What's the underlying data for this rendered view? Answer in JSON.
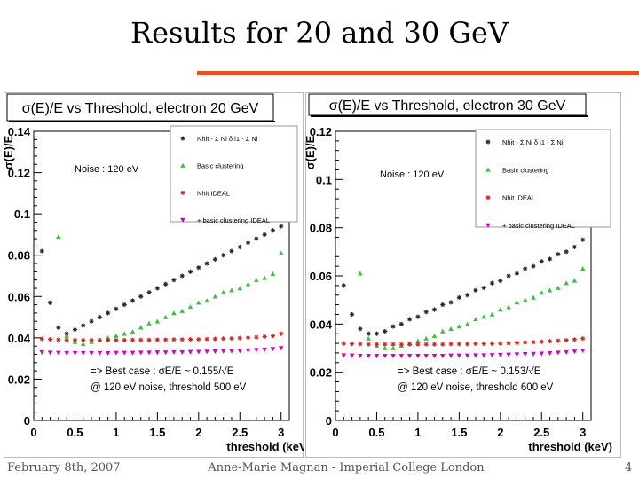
{
  "slide": {
    "title": "Results for 20 and 30 GeV",
    "footer_left": "February 8th, 2007",
    "footer_center": "Anne-Marie Magnan - Imperial College London",
    "page_number": "4"
  },
  "colors": {
    "accent_rule": "#e8501e",
    "series": [
      "#222222",
      "#3fbf3f",
      "#d62020",
      "#d000d0"
    ]
  },
  "chart_data": [
    {
      "type": "scatter",
      "title": "σ(E)/E vs Threshold, electron 20 GeV",
      "ylabel": "σ(E)/E",
      "xlabel": "threshold (keV)",
      "xlim": [
        0,
        3.1
      ],
      "ylim": [
        0,
        0.14
      ],
      "xticks": [
        0,
        0.5,
        1,
        1.5,
        2,
        2.5,
        3
      ],
      "xtick_labels": [
        "0",
        "0.5",
        "1",
        "1.5",
        "2",
        "2.5",
        "3"
      ],
      "yticks": [
        0,
        0.02,
        0.04,
        0.06,
        0.08,
        0.1,
        0.12,
        0.14
      ],
      "ytick_labels": [
        "0",
        "0.02",
        "0.04",
        "0.06",
        "0.08",
        "0.1",
        "0.12",
        "0.14"
      ],
      "grid": false,
      "legend_position": "top-right",
      "noise_label": "Noise : 120 eV",
      "annotation_line1": "=> Best case : σE/E ~ 0.155/√E",
      "annotation_line2": "@ 120 eV noise, threshold 500 eV",
      "legend": [
        {
          "label": "Nhit - Σ Ni δ i1 - Σ Ni",
          "marker": "star",
          "color": "#222222"
        },
        {
          "label": "Basic clustering",
          "marker": "triangle",
          "color": "#3fbf3f"
        },
        {
          "label": "Nhit IDEAL",
          "marker": "star",
          "color": "#d62020"
        },
        {
          "label": "+ basic clustering IDEAL",
          "marker": "triangle-down",
          "color": "#d000d0"
        }
      ],
      "series": [
        {
          "marker": "star",
          "color": "#222222",
          "x": [
            0.1,
            0.2,
            0.3,
            0.4,
            0.5,
            0.6,
            0.7,
            0.8,
            0.9,
            1.0,
            1.1,
            1.2,
            1.3,
            1.4,
            1.5,
            1.6,
            1.7,
            1.8,
            1.9,
            2.0,
            2.1,
            2.2,
            2.3,
            2.4,
            2.5,
            2.6,
            2.7,
            2.8,
            2.9,
            3.0
          ],
          "y": [
            0.082,
            0.057,
            0.045,
            0.042,
            0.044,
            0.046,
            0.048,
            0.05,
            0.052,
            0.054,
            0.056,
            0.058,
            0.06,
            0.062,
            0.064,
            0.066,
            0.068,
            0.07,
            0.072,
            0.074,
            0.076,
            0.078,
            0.08,
            0.082,
            0.084,
            0.086,
            0.088,
            0.09,
            0.092,
            0.094
          ]
        },
        {
          "marker": "triangle",
          "color": "#3fbf3f",
          "x": [
            0.3,
            0.4,
            0.5,
            0.6,
            0.7,
            0.8,
            0.9,
            1.0,
            1.1,
            1.2,
            1.3,
            1.4,
            1.5,
            1.6,
            1.7,
            1.8,
            1.9,
            2.0,
            2.1,
            2.2,
            2.3,
            2.4,
            2.5,
            2.6,
            2.7,
            2.8,
            2.9,
            3.0
          ],
          "y": [
            0.089,
            0.041,
            0.038,
            0.037,
            0.038,
            0.039,
            0.04,
            0.041,
            0.042,
            0.043,
            0.045,
            0.047,
            0.048,
            0.05,
            0.052,
            0.053,
            0.055,
            0.057,
            0.058,
            0.06,
            0.062,
            0.063,
            0.064,
            0.066,
            0.068,
            0.069,
            0.071,
            0.081
          ]
        },
        {
          "marker": "star",
          "color": "#d62020",
          "x": [
            0.1,
            0.2,
            0.3,
            0.4,
            0.5,
            0.6,
            0.7,
            0.8,
            0.9,
            1.0,
            1.1,
            1.2,
            1.3,
            1.4,
            1.5,
            1.6,
            1.7,
            1.8,
            1.9,
            2.0,
            2.1,
            2.2,
            2.3,
            2.4,
            2.5,
            2.6,
            2.7,
            2.8,
            2.9,
            3.0
          ],
          "y": [
            0.0395,
            0.0393,
            0.0391,
            0.039,
            0.039,
            0.0389,
            0.0389,
            0.0389,
            0.0389,
            0.0389,
            0.0389,
            0.039,
            0.039,
            0.039,
            0.0391,
            0.0391,
            0.0392,
            0.0392,
            0.0393,
            0.0393,
            0.0394,
            0.0395,
            0.0396,
            0.0397,
            0.0399,
            0.0401,
            0.0403,
            0.0406,
            0.041,
            0.042
          ]
        },
        {
          "marker": "triangle-down",
          "color": "#d000d0",
          "x": [
            0.1,
            0.2,
            0.3,
            0.4,
            0.5,
            0.6,
            0.7,
            0.8,
            0.9,
            1.0,
            1.1,
            1.2,
            1.3,
            1.4,
            1.5,
            1.6,
            1.7,
            1.8,
            1.9,
            2.0,
            2.1,
            2.2,
            2.3,
            2.4,
            2.5,
            2.6,
            2.7,
            2.8,
            2.9,
            3.0
          ],
          "y": [
            0.033,
            0.0328,
            0.0327,
            0.0326,
            0.0326,
            0.0326,
            0.0326,
            0.0326,
            0.0326,
            0.0327,
            0.0327,
            0.0327,
            0.0328,
            0.0328,
            0.0329,
            0.0329,
            0.033,
            0.033,
            0.0331,
            0.0332,
            0.0333,
            0.0334,
            0.0335,
            0.0336,
            0.0337,
            0.0339,
            0.0341,
            0.0343,
            0.0346,
            0.035
          ]
        }
      ]
    },
    {
      "type": "scatter",
      "title": "σ(E)/E vs Threshold, electron 30 GeV",
      "ylabel": "σ(E)/E",
      "xlabel": "threshold (keV)",
      "xlim": [
        0,
        3.1
      ],
      "ylim": [
        0,
        0.12
      ],
      "xticks": [
        0,
        0.5,
        1,
        1.5,
        2,
        2.5,
        3
      ],
      "xtick_labels": [
        "0",
        "0.5",
        "1",
        "1.5",
        "2",
        "2.5",
        "3"
      ],
      "yticks": [
        0,
        0.02,
        0.04,
        0.06,
        0.08,
        0.1,
        0.12
      ],
      "ytick_labels": [
        "0",
        "0.02",
        "0.04",
        "0.06",
        "0.08",
        "0.1",
        "0.12"
      ],
      "grid": false,
      "legend_position": "top-right",
      "noise_label": "Noise : 120 eV",
      "annotation_line1": "=> Best case : σE/E ~ 0.153/√E",
      "annotation_line2": "@ 120 eV noise, threshold 600 eV",
      "legend": [
        {
          "label": "Nhit - Σ Ni δ i1 - Σ Ni",
          "marker": "star",
          "color": "#222222"
        },
        {
          "label": "Basic clustering",
          "marker": "triangle",
          "color": "#3fbf3f"
        },
        {
          "label": "Nhit IDEAL",
          "marker": "star",
          "color": "#d62020"
        },
        {
          "label": "+ basic clustering IDEAL",
          "marker": "triangle-down",
          "color": "#d000d0"
        }
      ],
      "series": [
        {
          "marker": "star",
          "color": "#222222",
          "x": [
            0.1,
            0.2,
            0.3,
            0.4,
            0.5,
            0.6,
            0.7,
            0.8,
            0.9,
            1.0,
            1.1,
            1.2,
            1.3,
            1.4,
            1.5,
            1.6,
            1.7,
            1.8,
            1.9,
            2.0,
            2.1,
            2.2,
            2.3,
            2.4,
            2.5,
            2.6,
            2.7,
            2.8,
            2.9,
            3.0
          ],
          "y": [
            0.056,
            0.044,
            0.038,
            0.036,
            0.036,
            0.037,
            0.039,
            0.04,
            0.042,
            0.043,
            0.045,
            0.046,
            0.048,
            0.049,
            0.051,
            0.052,
            0.054,
            0.055,
            0.057,
            0.058,
            0.06,
            0.061,
            0.063,
            0.064,
            0.066,
            0.067,
            0.069,
            0.07,
            0.072,
            0.075
          ]
        },
        {
          "marker": "triangle",
          "color": "#3fbf3f",
          "x": [
            0.3,
            0.4,
            0.5,
            0.6,
            0.7,
            0.8,
            0.9,
            1.0,
            1.1,
            1.2,
            1.3,
            1.4,
            1.5,
            1.6,
            1.7,
            1.8,
            1.9,
            2.0,
            2.1,
            2.2,
            2.3,
            2.4,
            2.5,
            2.6,
            2.7,
            2.8,
            2.9,
            3.0
          ],
          "y": [
            0.061,
            0.034,
            0.031,
            0.03,
            0.03,
            0.031,
            0.032,
            0.033,
            0.034,
            0.035,
            0.037,
            0.038,
            0.039,
            0.04,
            0.042,
            0.043,
            0.044,
            0.046,
            0.047,
            0.049,
            0.05,
            0.051,
            0.053,
            0.054,
            0.055,
            0.057,
            0.058,
            0.063
          ]
        },
        {
          "marker": "star",
          "color": "#d62020",
          "x": [
            0.1,
            0.2,
            0.3,
            0.4,
            0.5,
            0.6,
            0.7,
            0.8,
            0.9,
            1.0,
            1.1,
            1.2,
            1.3,
            1.4,
            1.5,
            1.6,
            1.7,
            1.8,
            1.9,
            2.0,
            2.1,
            2.2,
            2.3,
            2.4,
            2.5,
            2.6,
            2.7,
            2.8,
            2.9,
            3.0
          ],
          "y": [
            0.032,
            0.0318,
            0.0317,
            0.0316,
            0.0316,
            0.0316,
            0.0316,
            0.0316,
            0.0316,
            0.0316,
            0.0316,
            0.0316,
            0.0316,
            0.0317,
            0.0317,
            0.0317,
            0.0318,
            0.0318,
            0.0319,
            0.032,
            0.0321,
            0.0322,
            0.0324,
            0.0325,
            0.0327,
            0.0329,
            0.0331,
            0.0333,
            0.0336,
            0.034
          ]
        },
        {
          "marker": "triangle-down",
          "color": "#d000d0",
          "x": [
            0.1,
            0.2,
            0.3,
            0.4,
            0.5,
            0.6,
            0.7,
            0.8,
            0.9,
            1.0,
            1.1,
            1.2,
            1.3,
            1.4,
            1.5,
            1.6,
            1.7,
            1.8,
            1.9,
            2.0,
            2.1,
            2.2,
            2.3,
            2.4,
            2.5,
            2.6,
            2.7,
            2.8,
            2.9,
            3.0
          ],
          "y": [
            0.027,
            0.0269,
            0.0268,
            0.0268,
            0.0268,
            0.0268,
            0.0268,
            0.0268,
            0.0268,
            0.0268,
            0.0268,
            0.0268,
            0.0268,
            0.0269,
            0.0269,
            0.0269,
            0.027,
            0.027,
            0.0271,
            0.0272,
            0.0273,
            0.0274,
            0.0275,
            0.0276,
            0.0277,
            0.0279,
            0.0281,
            0.0283,
            0.0286,
            0.029
          ]
        }
      ]
    }
  ]
}
